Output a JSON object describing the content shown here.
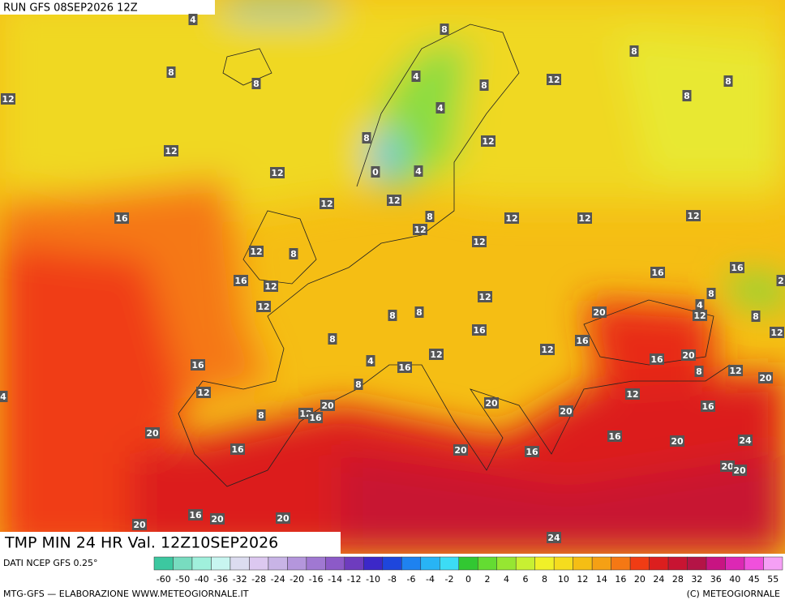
{
  "header": {
    "run": "RUN GFS 08SEP2026 12Z"
  },
  "title": "TMP MIN 24 HR Val. 12Z10SEP2026",
  "source": "DATI NCEP GFS 0.25°",
  "credit_left": "MTG-GFS — ELABORAZIONE WWW.METEOGIORNALE.IT",
  "credit_right": "(C) METEOGIORNALE",
  "scale": {
    "ticks": [
      -60,
      -50,
      -40,
      -36,
      -32,
      -28,
      -24,
      -20,
      -16,
      -14,
      -12,
      -10,
      -8,
      -6,
      -4,
      -2,
      0,
      2,
      4,
      6,
      8,
      10,
      12,
      14,
      16,
      20,
      24,
      28,
      32,
      36,
      40,
      45,
      55
    ],
    "colors": [
      "#3cc8a0",
      "#78dcc0",
      "#a0f0dc",
      "#c8f5f0",
      "#dcdcf0",
      "#dcc8f0",
      "#c8b4e6",
      "#b496dc",
      "#a078d2",
      "#8c5ac8",
      "#6e3cbe",
      "#3c28c8",
      "#1e46dc",
      "#1e82f0",
      "#28b4f5",
      "#3cdcf5",
      "#32c832",
      "#64dc32",
      "#96e632",
      "#c8f032",
      "#f0f028",
      "#f5dc1e",
      "#f5be14",
      "#f5a014",
      "#f57814",
      "#f03c14",
      "#dc1e1e",
      "#c81432",
      "#b41446",
      "#c81482",
      "#dc28b4",
      "#f050dc",
      "#f5a0f5"
    ]
  },
  "map_labels": [
    4,
    8,
    8,
    8,
    8,
    4,
    8,
    12,
    8,
    12,
    4,
    8,
    12,
    12,
    8,
    0,
    4,
    12,
    12,
    12,
    16,
    8,
    12,
    12,
    12,
    12,
    12,
    12,
    8,
    16,
    16,
    16,
    12,
    2,
    8,
    12,
    12,
    8,
    8,
    20,
    4,
    12,
    8,
    12,
    8,
    16,
    16,
    12,
    4,
    12,
    16,
    16,
    16,
    20,
    8,
    12,
    20,
    8,
    4,
    12,
    12,
    20,
    12,
    16,
    20,
    16,
    8,
    20,
    20,
    16,
    20,
    24,
    16,
    20,
    16,
    20,
    20,
    20,
    16,
    20,
    20,
    24
  ]
}
